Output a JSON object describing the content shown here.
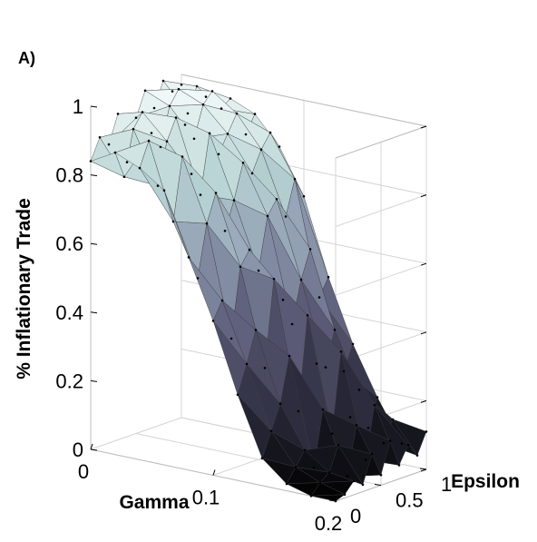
{
  "chart_data": {
    "type": "surface3d",
    "panel_label": "A)",
    "title": "",
    "xlabel": "Gamma",
    "ylabel": "Epsilon",
    "zlabel": "% Inflationary Trade",
    "x_ticks": [
      "0",
      "0.1",
      "0.2"
    ],
    "y_ticks": [
      "0",
      "0.5",
      "1"
    ],
    "z_ticks": [
      "0",
      "0.2",
      "0.4",
      "0.6",
      "0.8",
      "1"
    ],
    "xlim": [
      0,
      0.2
    ],
    "ylim": [
      0,
      1
    ],
    "zlim": [
      0,
      1
    ],
    "grid": true,
    "colormap": [
      "#000000",
      "#2c2c3e",
      "#5c5c78",
      "#8e9ab0",
      "#b8d4d4",
      "#f4fafa"
    ],
    "gamma": [
      0,
      0.02,
      0.04,
      0.06,
      0.08,
      0.1,
      0.12,
      0.14,
      0.16,
      0.18,
      0.2
    ],
    "epsilon": [
      0,
      0.1,
      0.2,
      0.3,
      0.4,
      0.5,
      0.6,
      0.7,
      0.8,
      0.9,
      1.0
    ],
    "z": [
      [
        0.84,
        0.9,
        0.87,
        0.95,
        0.8,
        0.92,
        0.99,
        0.93,
        1.0,
        0.96,
        0.97
      ],
      [
        0.88,
        0.8,
        0.93,
        0.97,
        0.9,
        0.85,
        0.96,
        1.0,
        0.92,
        0.99,
        0.95
      ],
      [
        0.85,
        0.92,
        0.78,
        0.9,
        0.96,
        0.93,
        0.88,
        0.97,
        1.0,
        0.94,
        0.96
      ],
      [
        0.8,
        0.7,
        0.88,
        0.82,
        0.75,
        0.92,
        0.85,
        0.9,
        0.95,
        0.88,
        0.93
      ],
      [
        0.62,
        0.55,
        0.7,
        0.78,
        0.66,
        0.74,
        0.84,
        0.8,
        0.86,
        0.9,
        0.85
      ],
      [
        0.45,
        0.5,
        0.38,
        0.58,
        0.62,
        0.55,
        0.7,
        0.74,
        0.68,
        0.78,
        0.72
      ],
      [
        0.25,
        0.33,
        0.42,
        0.3,
        0.55,
        0.48,
        0.4,
        0.52,
        0.6,
        0.45,
        0.5
      ],
      [
        0.08,
        0.15,
        0.22,
        0.35,
        0.18,
        0.45,
        0.3,
        0.28,
        0.38,
        0.25,
        0.32
      ],
      [
        0.02,
        0.06,
        0.1,
        0.04,
        0.2,
        0.12,
        0.35,
        0.15,
        0.22,
        0.1,
        0.18
      ],
      [
        0.0,
        0.03,
        0.05,
        0.12,
        0.02,
        0.16,
        0.05,
        0.2,
        0.08,
        0.14,
        0.06
      ],
      [
        0.0,
        0.01,
        0.04,
        0.02,
        0.1,
        0.03,
        0.12,
        0.04,
        0.09,
        0.05,
        0.11
      ]
    ]
  }
}
